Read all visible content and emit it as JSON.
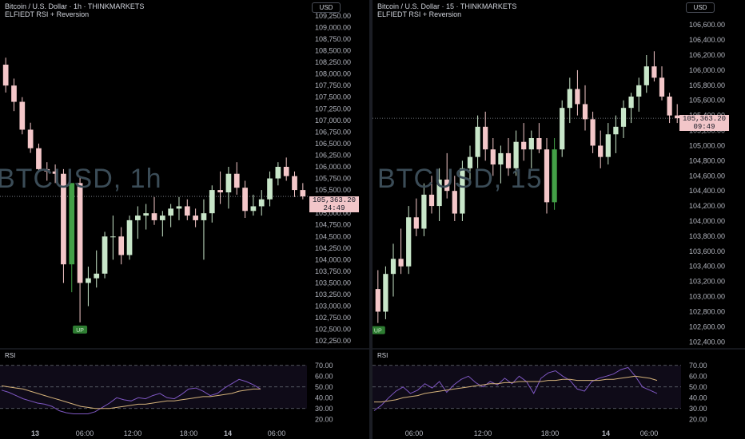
{
  "left": {
    "title": "Bitcoin / U.S. Dollar · 1h · THINKMARKETS",
    "subtitle": "ELFIEDT RSI + Reversion",
    "currency": "USD",
    "watermark": "BTCUSD, 1h",
    "price_value": "105,363.20",
    "countdown": "24:49",
    "signal_label": "UP",
    "rsi_label": "RSI"
  },
  "right": {
    "title": "Bitcoin / U.S. Dollar · 15 · THINKMARKETS",
    "subtitle": "ELFIEDT RSI + Reversion",
    "currency": "USD",
    "watermark": "BTCUSD, 15",
    "price_value": "105,363.20",
    "countdown": "09:49",
    "signal_label": "UP",
    "rsi_label": "RSI"
  },
  "colors": {
    "bull": "#c8e6c9",
    "bear": "#f4c7c9",
    "bull_strong": "#43a047",
    "rsi_line": "#7e57c2",
    "rsi_ma": "#d4b27a",
    "tag": "#f2c6c9"
  },
  "chart_data": [
    {
      "type": "candlestick",
      "title": "Bitcoin / U.S. Dollar · 1h · THINKMARKETS",
      "ylim": [
        102150,
        109300
      ],
      "y_ticks": [
        102250,
        102500,
        102750,
        103000,
        103250,
        103500,
        103750,
        104000,
        104250,
        104500,
        104750,
        105000,
        105250,
        105500,
        105750,
        106000,
        106250,
        106500,
        106750,
        107000,
        107250,
        107500,
        107750,
        108000,
        108250,
        108500,
        108750,
        109000,
        109250
      ],
      "y_tick_labels": [
        "102,250.00",
        "102,500.00",
        "102,750.00",
        "103,000.00",
        "103,250.00",
        "103,500.00",
        "103,750.00",
        "104,000.00",
        "104,250.00",
        "104,500.00",
        "104,750.00",
        "105,000.00",
        "105,250.00",
        "105,500.00",
        "105,750.00",
        "106,000.00",
        "106,250.00",
        "106,500.00",
        "106,750.00",
        "107,000.00",
        "107,250.00",
        "107,500.00",
        "107,750.00",
        "108,000.00",
        "108,250.00",
        "108,500.00",
        "108,750.00",
        "109,000.00",
        "109,250.00"
      ],
      "x_labels": [
        "13",
        "06:00",
        "12:00",
        "18:00",
        "14",
        "06:00"
      ],
      "last_price": 105363.2,
      "ohlc": [
        [
          108200,
          108350,
          107600,
          107750
        ],
        [
          107750,
          107900,
          107200,
          107400
        ],
        [
          107400,
          107500,
          106700,
          106800
        ],
        [
          106800,
          106950,
          106300,
          106400
        ],
        [
          106400,
          106500,
          105900,
          105950
        ],
        [
          105950,
          106100,
          105700,
          105900
        ],
        [
          105900,
          106050,
          105650,
          105850
        ],
        [
          105850,
          105950,
          103500,
          103900
        ],
        [
          103900,
          105650,
          103300,
          105650
        ],
        [
          105650,
          105800,
          102650,
          103500
        ],
        [
          103500,
          103850,
          103000,
          103600
        ],
        [
          103600,
          104200,
          103400,
          103700
        ],
        [
          103700,
          104600,
          103600,
          104500
        ],
        [
          104500,
          104950,
          104000,
          104500
        ],
        [
          104500,
          104700,
          103900,
          104100
        ],
        [
          104100,
          104950,
          104000,
          104850
        ],
        [
          104850,
          105150,
          104450,
          104950
        ],
        [
          104950,
          105200,
          104650,
          105000
        ],
        [
          105000,
          105350,
          104750,
          104850
        ],
        [
          104850,
          105050,
          104500,
          104950
        ],
        [
          104950,
          105200,
          104700,
          105100
        ],
        [
          105100,
          105350,
          104850,
          105150
        ],
        [
          105150,
          105300,
          104850,
          104950
        ],
        [
          104950,
          105100,
          104700,
          104850
        ],
        [
          104850,
          105300,
          104000,
          105000
        ],
        [
          105000,
          105600,
          104800,
          105500
        ],
        [
          105500,
          105900,
          105200,
          105450
        ],
        [
          105450,
          106000,
          105100,
          105850
        ],
        [
          105850,
          106100,
          105400,
          105550
        ],
        [
          105550,
          105700,
          104900,
          105050
        ],
        [
          105050,
          105400,
          104950,
          105150
        ],
        [
          105150,
          105500,
          104950,
          105300
        ],
        [
          105300,
          105900,
          105150,
          105750
        ],
        [
          105750,
          106100,
          105600,
          106000
        ],
        [
          106000,
          106200,
          105700,
          105800
        ],
        [
          105800,
          105900,
          105350,
          105500
        ],
        [
          105500,
          105650,
          105300,
          105363
        ]
      ],
      "signals": [
        {
          "index": 9,
          "label": "UP"
        }
      ],
      "rsi": {
        "ylim": [
          15,
          75
        ],
        "y_ticks": [
          20,
          30,
          40,
          50,
          60,
          70
        ],
        "y_tick_labels": [
          "20.00",
          "30.00",
          "40.00",
          "50.00",
          "60.00",
          "70.00"
        ],
        "bands": [
          30,
          50,
          70
        ],
        "line": [
          47,
          45,
          42,
          39,
          37,
          35,
          34,
          32,
          28,
          26,
          25,
          25,
          25,
          27,
          31,
          35,
          40,
          38,
          37,
          40,
          39,
          42,
          44,
          40,
          39,
          43,
          48,
          49,
          46,
          42,
          44,
          49,
          53,
          57,
          55,
          52,
          48
        ],
        "ma": [
          51,
          50,
          49,
          48,
          46,
          44,
          42,
          40,
          38,
          36,
          34,
          32,
          31,
          30,
          30,
          30,
          31,
          32,
          33,
          34,
          34,
          35,
          36,
          37,
          37,
          38,
          39,
          40,
          41,
          41,
          42,
          43,
          44,
          46,
          47,
          48,
          48
        ]
      }
    },
    {
      "type": "candlestick",
      "title": "Bitcoin / U.S. Dollar · 15 · THINKMARKETS",
      "ylim": [
        102350,
        106750
      ],
      "y_ticks": [
        102400,
        102600,
        102800,
        103000,
        103200,
        103400,
        103600,
        103800,
        104000,
        104200,
        104400,
        104600,
        104800,
        105000,
        105200,
        105400,
        105600,
        105800,
        106000,
        106200,
        106400,
        106600
      ],
      "y_tick_labels": [
        "102,400.00",
        "102,600.00",
        "102,800.00",
        "103,000.00",
        "103,200.00",
        "103,400.00",
        "103,600.00",
        "103,800.00",
        "104,000.00",
        "104,200.00",
        "104,400.00",
        "104,600.00",
        "104,800.00",
        "105,000.00",
        "105,200.00",
        "105,400.00",
        "105,600.00",
        "105,800.00",
        "106,000.00",
        "106,200.00",
        "106,400.00",
        "106,600.00"
      ],
      "x_labels": [
        "06:00",
        "12:00",
        "18:00",
        "14",
        "06:00"
      ],
      "last_price": 105363.2,
      "ohlc": [
        [
          103100,
          103350,
          102650,
          102800
        ],
        [
          102800,
          103400,
          102700,
          103300
        ],
        [
          103300,
          103700,
          103000,
          103500
        ],
        [
          103500,
          103900,
          103300,
          103400
        ],
        [
          103400,
          104200,
          103300,
          104050
        ],
        [
          104050,
          104300,
          103800,
          103900
        ],
        [
          103900,
          104500,
          103800,
          104350
        ],
        [
          104350,
          104600,
          104100,
          104200
        ],
        [
          104200,
          104700,
          104000,
          104550
        ],
        [
          104550,
          104900,
          104300,
          104400
        ],
        [
          104400,
          104600,
          104000,
          104100
        ],
        [
          104100,
          104800,
          104000,
          104700
        ],
        [
          104700,
          105000,
          104500,
          104850
        ],
        [
          104850,
          105400,
          104700,
          105250
        ],
        [
          105250,
          105450,
          104800,
          104950
        ],
        [
          104950,
          105100,
          104600,
          104750
        ],
        [
          104750,
          105000,
          104500,
          104900
        ],
        [
          104900,
          105100,
          104600,
          104700
        ],
        [
          104700,
          105200,
          104600,
          105050
        ],
        [
          105050,
          105300,
          104800,
          104950
        ],
        [
          104950,
          105200,
          104700,
          105100
        ],
        [
          105100,
          105300,
          104900,
          104950
        ],
        [
          104950,
          105100,
          104100,
          104250
        ],
        [
          104250,
          105100,
          104150,
          104950
        ],
        [
          104950,
          105600,
          104850,
          105500
        ],
        [
          105500,
          105900,
          105300,
          105750
        ],
        [
          105750,
          106000,
          105400,
          105550
        ],
        [
          105550,
          105800,
          105200,
          105350
        ],
        [
          105350,
          105450,
          104900,
          105000
        ],
        [
          105000,
          105200,
          104700,
          104850
        ],
        [
          104850,
          105300,
          104750,
          105150
        ],
        [
          105150,
          105400,
          104900,
          105250
        ],
        [
          105250,
          105600,
          105100,
          105500
        ],
        [
          105500,
          105700,
          105300,
          105650
        ],
        [
          105650,
          105900,
          105450,
          105800
        ],
        [
          105800,
          106200,
          105700,
          106050
        ],
        [
          106050,
          106250,
          105850,
          105900
        ],
        [
          105900,
          106050,
          105600,
          105650
        ],
        [
          105650,
          105700,
          105300,
          105400
        ],
        [
          105400,
          105550,
          105300,
          105363
        ]
      ],
      "signals": [
        {
          "index": 0,
          "label": "UP"
        }
      ],
      "rsi": {
        "ylim": [
          15,
          75
        ],
        "y_ticks": [
          20,
          30,
          40,
          50,
          60,
          70
        ],
        "y_tick_labels": [
          "20.00",
          "30.00",
          "40.00",
          "50.00",
          "60.00",
          "70.00"
        ],
        "bands": [
          30,
          50,
          70
        ],
        "line": [
          28,
          33,
          40,
          46,
          50,
          44,
          47,
          53,
          49,
          55,
          45,
          52,
          57,
          60,
          54,
          50,
          55,
          52,
          58,
          53,
          60,
          55,
          44,
          58,
          63,
          65,
          60,
          56,
          48,
          46,
          55,
          58,
          60,
          62,
          66,
          68,
          60,
          50,
          47,
          44
        ],
        "ma": [
          36,
          36,
          37,
          38,
          40,
          41,
          42,
          44,
          45,
          46,
          47,
          48,
          49,
          50,
          51,
          52,
          53,
          53,
          54,
          54,
          55,
          55,
          55,
          55,
          56,
          56,
          57,
          57,
          56,
          56,
          56,
          56,
          57,
          57,
          58,
          59,
          60,
          59,
          58,
          56
        ]
      }
    }
  ]
}
